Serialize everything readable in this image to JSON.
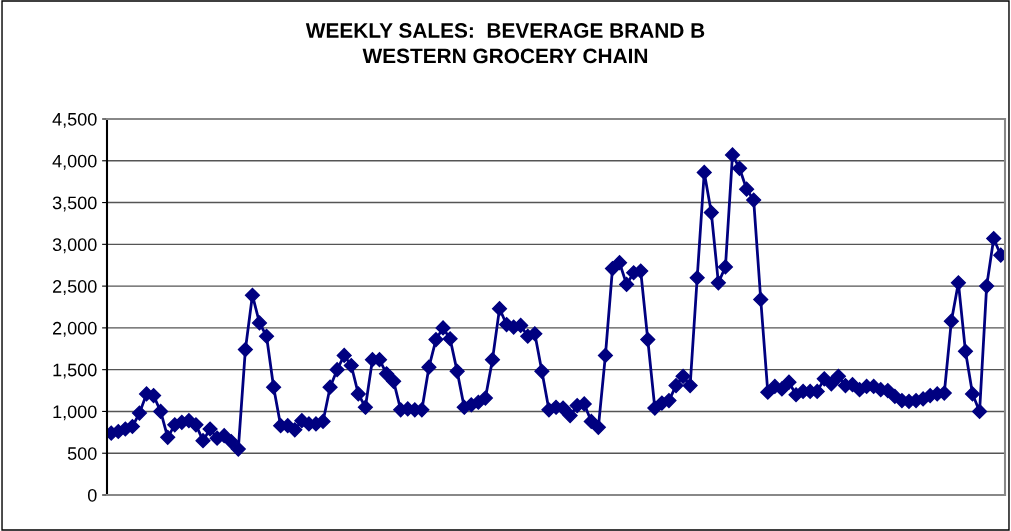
{
  "chart_data": {
    "type": "line",
    "title": "WEEKLY SALES:  BEVERAGE BRAND B\nWESTERN GROCERY CHAIN",
    "categories": [
      null,
      null,
      null,
      null,
      null,
      null,
      null,
      null,
      null,
      null,
      null,
      null,
      null,
      null,
      null,
      null,
      null,
      null,
      null,
      null,
      null,
      null,
      null,
      null,
      null,
      null,
      null,
      null,
      null,
      null,
      null,
      null,
      null,
      null,
      null,
      null,
      null,
      null,
      null,
      null,
      null,
      null,
      null,
      null,
      null,
      null,
      null,
      null,
      null,
      null,
      null,
      null,
      null,
      null,
      null,
      null,
      null,
      null,
      null,
      null,
      null,
      null,
      null,
      null,
      null,
      null,
      null,
      null,
      null,
      null,
      null,
      null,
      null,
      null,
      null,
      null,
      null,
      null,
      null,
      null,
      null,
      null,
      null,
      null,
      null,
      null,
      null,
      null,
      null,
      null,
      null,
      null,
      null,
      null,
      null,
      null,
      null,
      null,
      null,
      null,
      null,
      null,
      null,
      null,
      null,
      null,
      null,
      null,
      null,
      null,
      null,
      null,
      null,
      null,
      null,
      null,
      null,
      null,
      null,
      null,
      null,
      null,
      null,
      null,
      null,
      null,
      null
    ],
    "series": [
      {
        "color": "#000080",
        "values": [
          740,
          760,
          790,
          820,
          980,
          1210,
          1190,
          1000,
          690,
          840,
          870,
          890,
          840,
          650,
          790,
          680,
          710,
          640,
          550,
          1740,
          2390,
          2060,
          1900,
          1290,
          830,
          830,
          780,
          890,
          850,
          850,
          880,
          1290,
          1500,
          1670,
          1550,
          1210,
          1050,
          1620,
          1620,
          1450,
          1360,
          1020,
          1030,
          1020,
          1020,
          1530,
          1860,
          2000,
          1870,
          1480,
          1050,
          1080,
          1110,
          1160,
          1620,
          2230,
          2040,
          2010,
          2030,
          1900,
          1930,
          1480,
          1020,
          1050,
          1040,
          950,
          1070,
          1090,
          880,
          810,
          1670,
          2710,
          2780,
          2520,
          2660,
          2680,
          1860,
          1040,
          1100,
          1130,
          1310,
          1420,
          1310,
          2600,
          3860,
          3380,
          2540,
          2730,
          4070,
          3910,
          3660,
          3530,
          2340,
          1230,
          1300,
          1270,
          1350,
          1200,
          1240,
          1240,
          1240,
          1390,
          1330,
          1420,
          1310,
          1320,
          1260,
          1300,
          1300,
          1260,
          1250,
          1180,
          1130,
          1120,
          1130,
          1150,
          1190,
          1210,
          1220,
          2080,
          2540,
          1720,
          1210,
          1000,
          2500,
          3070,
          2870
        ]
      }
    ],
    "ylim": [
      0,
      4500
    ],
    "yticks": [
      {
        "value": 0,
        "label": "0"
      },
      {
        "value": 500,
        "label": "500"
      },
      {
        "value": 1000,
        "label": "1,000"
      },
      {
        "value": 1500,
        "label": "1,500"
      },
      {
        "value": 2000,
        "label": "2,000"
      },
      {
        "value": 2500,
        "label": "2,500"
      },
      {
        "value": 3000,
        "label": "3,000"
      },
      {
        "value": 3500,
        "label": "3,500"
      },
      {
        "value": 4000,
        "label": "4,000"
      },
      {
        "value": 4500,
        "label": "4,500"
      }
    ],
    "grid": "y",
    "marker": "diamond",
    "line_style": "solid",
    "legend": false
  }
}
